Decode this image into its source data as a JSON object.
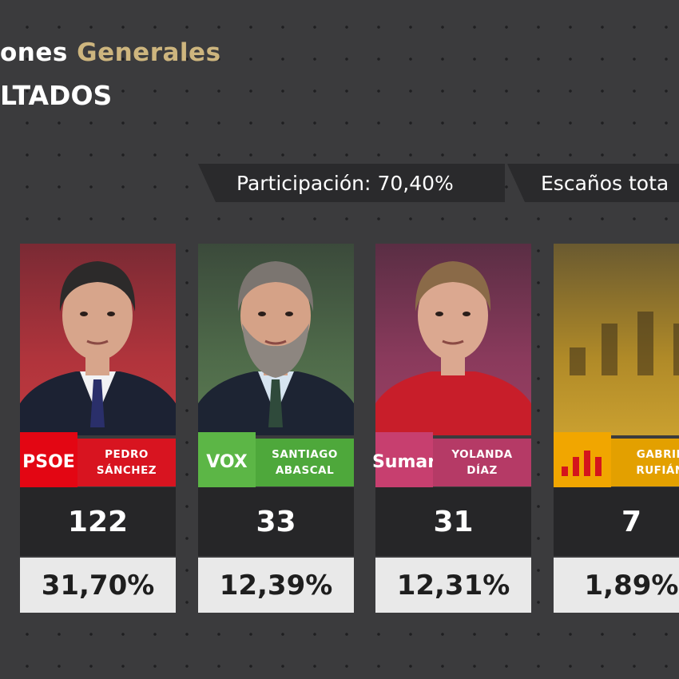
{
  "header": {
    "title": "ones",
    "title_highlight": "Generales",
    "subtitle": "LTADOS"
  },
  "stats": [
    {
      "label": "Participación:",
      "value": "70,40%"
    },
    {
      "label": "Escaños tota"
    }
  ],
  "parties": [
    {
      "logo": "PSOE",
      "candidate": [
        "PEDRO",
        "SÁNCHEZ"
      ],
      "seats": 122,
      "vote_share": "31,70%"
    },
    {
      "logo": "VOX",
      "candidate": [
        "SANTIAGO",
        "ABASCAL"
      ],
      "seats": 33,
      "vote_share": "12,39%"
    },
    {
      "logo": "Sumar",
      "candidate": [
        "YOLANDA",
        "DÍAZ"
      ],
      "seats": 31,
      "vote_share": "12,31%"
    },
    {
      "candidate": [
        "GABRIE",
        "RUFIÁN"
      ],
      "seats": 7,
      "vote_share": "1,89%"
    }
  ]
}
